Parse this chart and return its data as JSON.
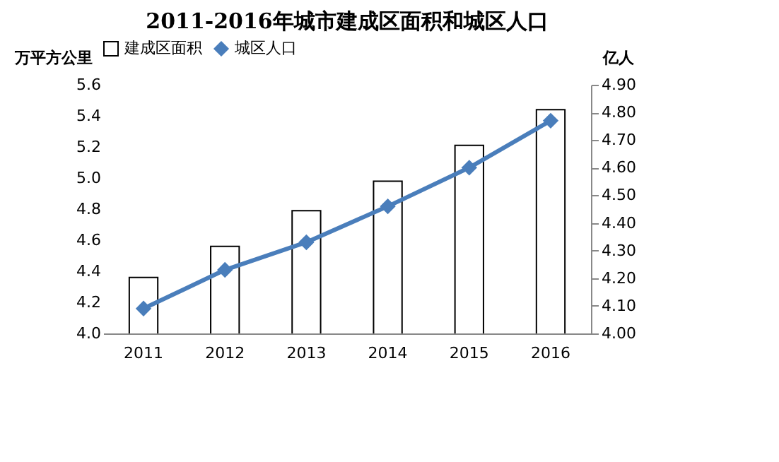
{
  "chart_data": {
    "type": "bar",
    "title": "2011-2016年城市建成区面积和城区人口",
    "ylabel": "万平方公里",
    "y2label": "亿人",
    "categories": [
      "2011",
      "2012",
      "2013",
      "2014",
      "2015",
      "2016"
    ],
    "series": [
      {
        "name": "建成区面积",
        "color": "#ffffff",
        "values": [
          4.36,
          4.56,
          4.79,
          4.98,
          5.21,
          5.44
        ]
      },
      {
        "name": "城区人口",
        "type": "line",
        "axis": "y2",
        "color": "#4a7ebb",
        "marker": "diamond",
        "values": [
          4.09,
          4.23,
          4.33,
          4.46,
          4.6,
          4.77
        ]
      }
    ],
    "ylim": [
      4.0,
      5.6
    ],
    "yticks": [
      {
        "value": 4.0,
        "label": "4.0"
      },
      4.2,
      4.4,
      4.6,
      4.8,
      {
        "value": 5.0,
        "label": "5.0"
      },
      5.2,
      5.4,
      5.6
    ],
    "y2lim": [
      4.0,
      4.9
    ],
    "y2ticks": [
      {
        "value": 4.0,
        "label": "4.00"
      },
      {
        "value": 4.1,
        "label": "4.10"
      },
      {
        "value": 4.2,
        "label": "4.20"
      },
      {
        "value": 4.3,
        "label": "4.30"
      },
      {
        "value": 4.4,
        "label": "4.40"
      },
      {
        "value": 4.5,
        "label": "4.50"
      },
      {
        "value": 4.6,
        "label": "4.60"
      },
      {
        "value": 4.7,
        "label": "4.70"
      },
      {
        "value": 4.8,
        "label": "4.80"
      },
      {
        "value": 4.9,
        "label": "4.90"
      }
    ],
    "grid": false,
    "legend": "top"
  }
}
